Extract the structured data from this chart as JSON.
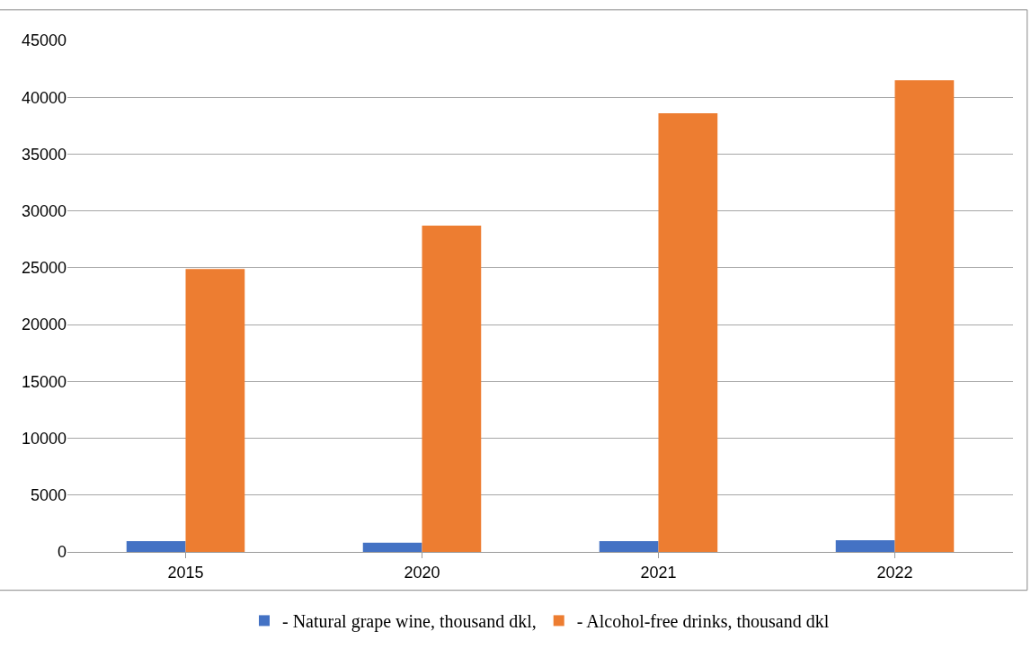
{
  "chart_data": {
    "type": "bar",
    "categories": [
      "2015",
      "2020",
      "2021",
      "2022"
    ],
    "series": [
      {
        "name": "- Natural grape wine, thousand dkl,",
        "color": "#4472c4",
        "values": [
          950,
          820,
          950,
          1030
        ]
      },
      {
        "name": "- Alcohol-free drinks, thousand dkl",
        "color": "#ed7d31",
        "values": [
          24900,
          28700,
          38600,
          41500
        ]
      }
    ],
    "ylim": [
      0,
      45000
    ],
    "yticks": [
      0,
      5000,
      10000,
      15000,
      20000,
      25000,
      30000,
      35000,
      40000,
      45000
    ],
    "grid": "y",
    "legend": "bottom"
  }
}
